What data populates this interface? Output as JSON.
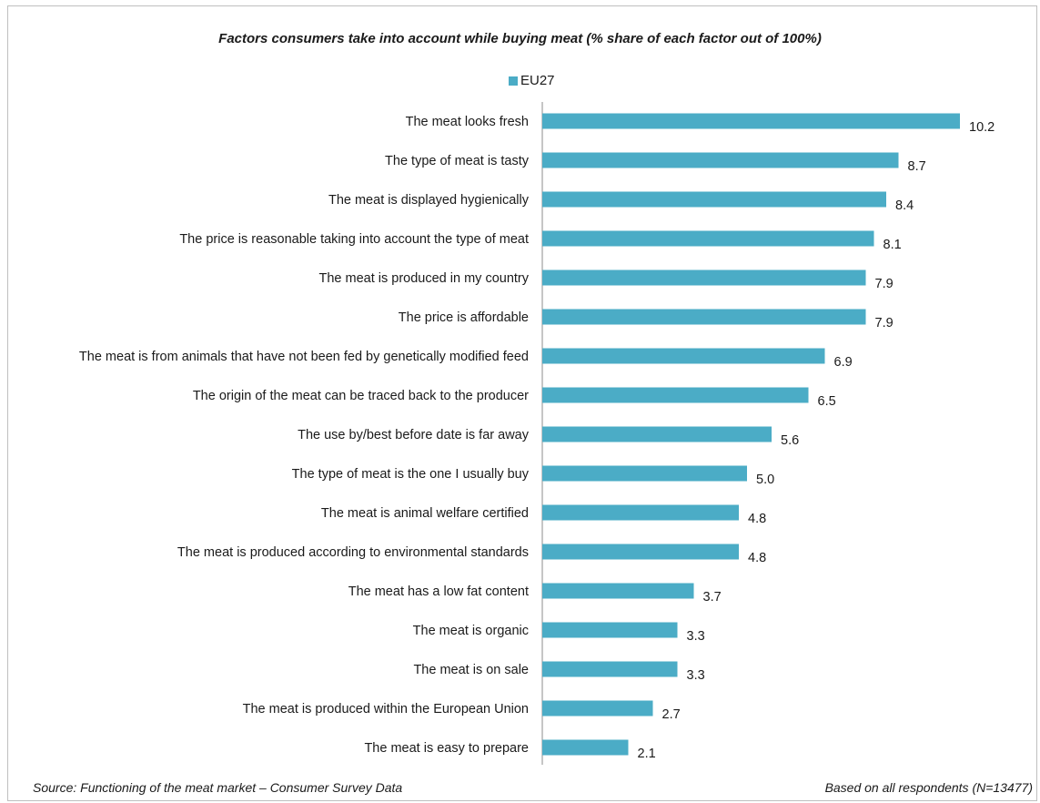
{
  "chart_data": {
    "type": "bar",
    "orientation": "horizontal",
    "title": "Factors consumers take into account while buying meat (% share of each factor out of 100%)",
    "legend": [
      "EU27"
    ],
    "legend_placement": "top",
    "series": [
      {
        "name": "EU27",
        "color": "#4BACC6",
        "categories": [
          "The meat looks fresh",
          "The type of meat is tasty",
          "The meat is displayed hygienically",
          "The price is reasonable taking into account the type of meat",
          "The meat is produced in my country",
          "The price is affordable",
          "The meat is from animals that have not been fed by genetically modified feed",
          "The origin of the meat can be traced back to the producer",
          "The use by/best before date is far away",
          "The type of meat is the one I usually buy",
          "The meat is animal welfare certified",
          "The meat is produced according to environmental standards",
          "The meat has a low fat content",
          "The meat is organic",
          "The meat is on sale",
          "The meat is produced within the European Union",
          "The meat is easy to prepare"
        ],
        "values": [
          10.2,
          8.7,
          8.4,
          8.1,
          7.9,
          7.9,
          6.9,
          6.5,
          5.6,
          5.0,
          4.8,
          4.8,
          3.7,
          3.3,
          3.3,
          2.7,
          2.1
        ],
        "labels": [
          "10.2",
          "8.7",
          "8.4",
          "8.1",
          "7.9",
          "7.9",
          "6.9",
          "6.5",
          "5.6",
          "5.0",
          "4.8",
          "4.8",
          "3.7",
          "3.3",
          "3.3",
          "2.7",
          "2.1"
        ]
      }
    ],
    "xlim": [
      0,
      10.2
    ],
    "grid": false
  },
  "footer": {
    "source": "Source:  Functioning of the meat market – Consumer Survey Data",
    "base": "Based on all respondents (N=13477)"
  }
}
